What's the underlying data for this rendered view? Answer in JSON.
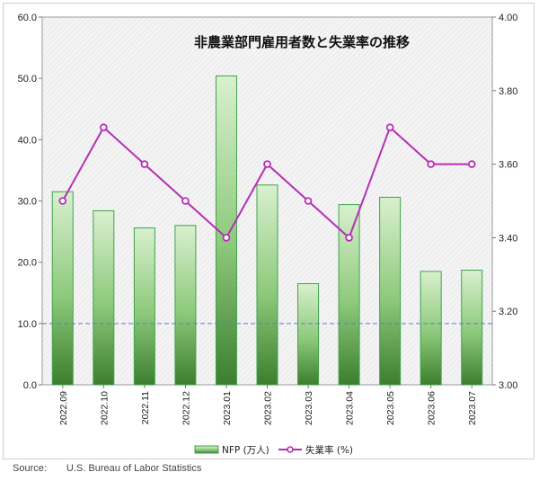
{
  "chart_data": {
    "type": "bar+line",
    "title": "非農業部門雇用者数と失業率の推移",
    "categories": [
      "2022.09",
      "2022.10",
      "2022.11",
      "2022.12",
      "2023.01",
      "2023.02",
      "2023.03",
      "2023.04",
      "2023.05",
      "2023.06",
      "2023.07"
    ],
    "series": [
      {
        "name": "NFP (万人)",
        "type": "bar",
        "axis": "left",
        "values": [
          31.5,
          28.4,
          25.6,
          26.0,
          50.4,
          32.6,
          16.5,
          29.4,
          30.6,
          18.5,
          18.7
        ]
      },
      {
        "name": "失業率 (%)",
        "type": "line",
        "axis": "right",
        "values": [
          3.5,
          3.7,
          3.6,
          3.5,
          3.4,
          3.6,
          3.5,
          3.4,
          3.7,
          3.6,
          3.6
        ]
      }
    ],
    "y_left": {
      "lim": [
        0,
        60
      ],
      "ticks": [
        "0.0",
        "10.0",
        "20.0",
        "30.0",
        "40.0",
        "50.0",
        "60.0"
      ]
    },
    "y_right": {
      "lim": [
        3.0,
        4.0
      ],
      "ticks": [
        "3.00",
        "3.20",
        "3.40",
        "3.60",
        "3.80",
        "4.00"
      ]
    },
    "reference_line": {
      "axis": "left",
      "value": 10.0
    },
    "legend_position": "bottom",
    "grid": false,
    "colors": {
      "bar_fill_top": "#d9f0cf",
      "bar_fill_bottom": "#3c7e2e",
      "bar_edge": "#3fa34d",
      "line": "#b52fb5",
      "marker_fill": "#ffffff",
      "reference_line": "#5b7bd6"
    }
  },
  "source": {
    "label": "Source:",
    "text": "U.S. Bureau of Labor Statistics"
  }
}
